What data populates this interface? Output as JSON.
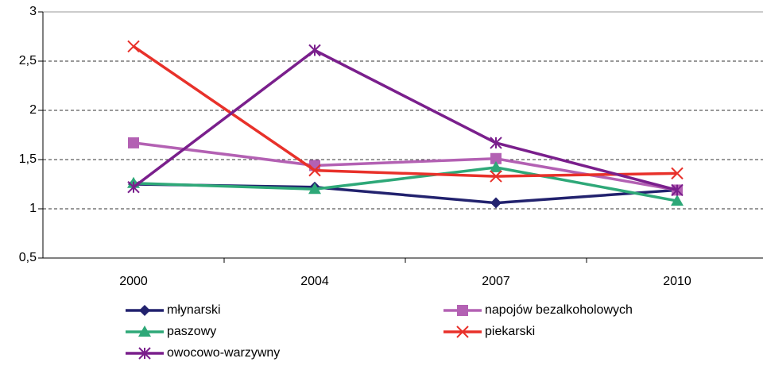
{
  "chart_data": {
    "type": "line",
    "categories": [
      "2000",
      "2004",
      "2007",
      "2010"
    ],
    "series": [
      {
        "name": "młynarski",
        "color": "#22226e",
        "marker": "diamond",
        "values": [
          1.25,
          1.22,
          1.06,
          1.19
        ]
      },
      {
        "name": "napojów bezalkoholowych",
        "color": "#b361b3",
        "marker": "square",
        "values": [
          1.67,
          1.44,
          1.51,
          1.19
        ]
      },
      {
        "name": "paszowy",
        "color": "#2ea878",
        "marker": "triangle",
        "values": [
          1.26,
          1.2,
          1.42,
          1.08
        ]
      },
      {
        "name": "piekarski",
        "color": "#e8312a",
        "marker": "x",
        "values": [
          2.65,
          1.39,
          1.33,
          1.36
        ]
      },
      {
        "name": "owocowo-warzywny",
        "color": "#7a1f8c",
        "marker": "asterisk",
        "values": [
          1.22,
          2.61,
          1.67,
          1.19
        ]
      }
    ],
    "ylim": [
      0.5,
      3
    ],
    "yticks": [
      {
        "value": 0.5,
        "label": "0,5"
      },
      1,
      {
        "value": 1.5,
        "label": "1,5"
      },
      2,
      {
        "value": 2.5,
        "label": "2,5"
      },
      3
    ],
    "grid": true,
    "legend": "bottom"
  }
}
